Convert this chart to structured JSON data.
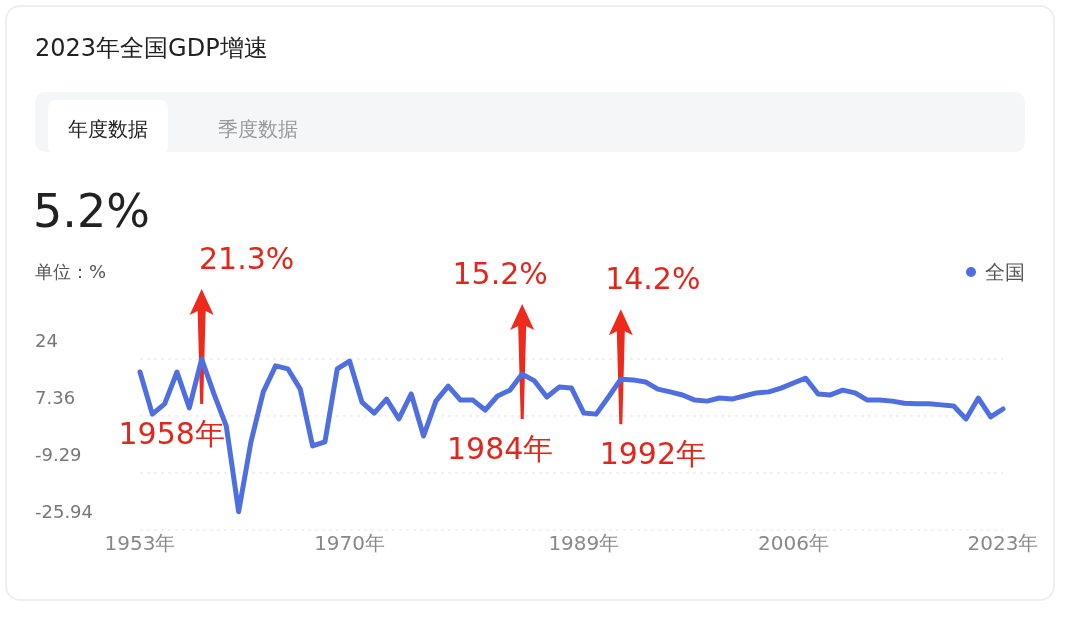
{
  "chart_data": {
    "type": "line",
    "title": "2023年全国GDP增速",
    "subtitle": "5.2%",
    "ylabel": "单位：%",
    "x": [
      1953,
      1954,
      1955,
      1956,
      1957,
      1958,
      1959,
      1960,
      1961,
      1962,
      1963,
      1964,
      1965,
      1966,
      1967,
      1968,
      1969,
      1970,
      1971,
      1972,
      1973,
      1974,
      1975,
      1976,
      1977,
      1978,
      1979,
      1980,
      1981,
      1982,
      1983,
      1984,
      1985,
      1986,
      1987,
      1988,
      1989,
      1990,
      1991,
      1992,
      1993,
      1994,
      1995,
      1996,
      1997,
      1998,
      1999,
      2000,
      2001,
      2002,
      2003,
      2004,
      2005,
      2006,
      2007,
      2008,
      2009,
      2010,
      2011,
      2012,
      2013,
      2014,
      2015,
      2016,
      2017,
      2018,
      2019,
      2020,
      2021,
      2022,
      2023
    ],
    "series": [
      {
        "name": "全国",
        "color": "#4f6fe0",
        "values": [
          20.2,
          7.9,
          10.9,
          20.2,
          9.7,
          24,
          13.8,
          4.4,
          -20.6,
          -0.2,
          14.4,
          22,
          21.1,
          15.2,
          -1.4,
          -0.2,
          21.1,
          23.4,
          11.4,
          8.2,
          12.3,
          6.5,
          13.8,
          1.5,
          11.7,
          16.1,
          12.0,
          12.0,
          9.1,
          13.2,
          14.9,
          19.6,
          17.6,
          12.9,
          15.8,
          15.5,
          8.2,
          7.9,
          12.9,
          18.1,
          17.9,
          17.3,
          15.2,
          14.4,
          13.5,
          12.0,
          11.7,
          12.6,
          12.3,
          13.2,
          14.1,
          14.4,
          15.5,
          17.0,
          18.4,
          13.8,
          13.5,
          14.9,
          14.1,
          12.0,
          12.0,
          11.7,
          11.1,
          10.9,
          10.9,
          10.6,
          10.3,
          6.5,
          12.6,
          7.1,
          9.4
        ]
      }
    ],
    "xlim": [
      1953,
      2023
    ],
    "xticks": [
      {
        "value": 1953,
        "label": "1953年"
      },
      {
        "value": 1970,
        "label": "1970年"
      },
      {
        "value": 1989,
        "label": "1989年"
      },
      {
        "value": 2006,
        "label": "2006年"
      },
      {
        "value": 2023,
        "label": "2023年"
      }
    ],
    "ylim": [
      -25.94,
      24
    ],
    "yticks": [
      24,
      7.36,
      -9.29,
      -25.94
    ],
    "grid": "y",
    "legend": "top right",
    "marker": "none",
    "line_style": "solid",
    "annotations": [
      "年度数据",
      "季度数据",
      {
        "text": "21.3%",
        "x": 1958,
        "y": 24
      },
      {
        "text": "1958年",
        "x": 1958,
        "y": 24
      },
      {
        "text": "15.2%",
        "x": 1984,
        "y": 19.6
      },
      {
        "text": "1984年",
        "x": 1984,
        "y": 19.6
      },
      {
        "text": "14.2%",
        "x": 1992,
        "y": 18.1
      },
      {
        "text": "1992年",
        "x": 1992,
        "y": 18.1
      }
    ]
  }
}
